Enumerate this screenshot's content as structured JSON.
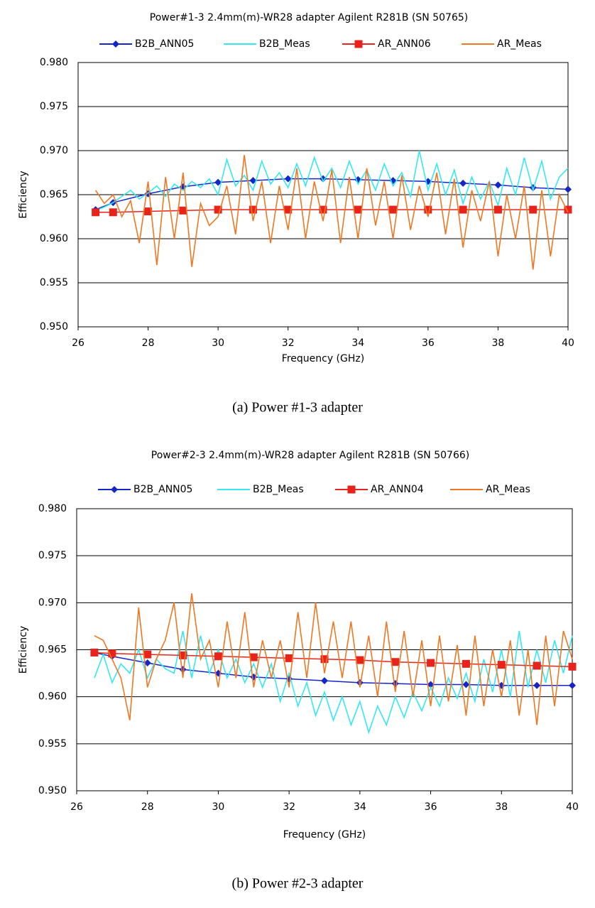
{
  "chart_data": [
    {
      "type": "line",
      "title": "Power#1-3  2.4mm(m)-WR28 adapter  Agilent R281B (SN 50765)",
      "xlabel": "Frequency (GHz)",
      "ylabel": "Efficiency",
      "caption": "(a)  Power  #1-3  adapter",
      "xlim": [
        26,
        40
      ],
      "xticks": [
        26,
        28,
        30,
        32,
        34,
        36,
        38,
        40
      ],
      "ylim": [
        0.95,
        0.98
      ],
      "yticks": [
        {
          "value": 0.95,
          "label": "0.950"
        },
        {
          "value": 0.955,
          "label": "0.955"
        },
        {
          "value": 0.96,
          "label": "0.960"
        },
        {
          "value": 0.965,
          "label": "0.965"
        },
        {
          "value": 0.97,
          "label": "0.970"
        },
        {
          "value": 0.975,
          "label": "0.975"
        },
        {
          "value": 0.98,
          "label": "0.980"
        }
      ],
      "grid": true,
      "series": [
        {
          "name": "B2B_ANN05",
          "color": "#1426c8",
          "marker": "diamond",
          "x": [
            26.5,
            27,
            28,
            29,
            30,
            31,
            32,
            33,
            34,
            35,
            36,
            37,
            38,
            39,
            40
          ],
          "values": [
            0.9633,
            0.9641,
            0.9651,
            0.9659,
            0.9664,
            0.9666,
            0.9668,
            0.9668,
            0.9667,
            0.9666,
            0.9665,
            0.9663,
            0.9661,
            0.9658,
            0.9656
          ]
        },
        {
          "name": "B2B_Meas",
          "color": "#33e8f2",
          "marker": null,
          "x": [
            26.5,
            26.75,
            27,
            27.25,
            27.5,
            27.75,
            28,
            28.25,
            28.5,
            28.75,
            29,
            29.25,
            29.5,
            29.75,
            30,
            30.25,
            30.5,
            30.75,
            31,
            31.25,
            31.5,
            31.75,
            32,
            32.25,
            32.5,
            32.75,
            33,
            33.25,
            33.5,
            33.75,
            34,
            34.25,
            34.5,
            34.75,
            35,
            35.25,
            35.5,
            35.75,
            36,
            36.25,
            36.5,
            36.75,
            37,
            37.25,
            37.5,
            37.75,
            38,
            38.25,
            38.5,
            38.75,
            39,
            39.25,
            39.5,
            39.75,
            40
          ],
          "values": [
            0.9632,
            0.9636,
            0.9641,
            0.9648,
            0.9655,
            0.9645,
            0.9652,
            0.966,
            0.9648,
            0.9662,
            0.9655,
            0.9665,
            0.9658,
            0.9668,
            0.965,
            0.969,
            0.966,
            0.9672,
            0.9655,
            0.9688,
            0.9662,
            0.9675,
            0.9658,
            0.9685,
            0.966,
            0.9692,
            0.9665,
            0.968,
            0.9658,
            0.9688,
            0.9662,
            0.9678,
            0.9655,
            0.9685,
            0.966,
            0.9675,
            0.9648,
            0.97,
            0.9655,
            0.9685,
            0.965,
            0.9678,
            0.964,
            0.967,
            0.9645,
            0.9665,
            0.9638,
            0.968,
            0.965,
            0.9692,
            0.9655,
            0.9688,
            0.9645,
            0.967,
            0.968
          ]
        },
        {
          "name": "AR_ANN06",
          "color": "#e8231b",
          "marker": "square",
          "x": [
            26.5,
            27,
            28,
            29,
            30,
            31,
            32,
            33,
            34,
            35,
            36,
            37,
            38,
            39,
            40
          ],
          "values": [
            0.963,
            0.963,
            0.9631,
            0.9632,
            0.9633,
            0.9633,
            0.9633,
            0.9633,
            0.9633,
            0.9633,
            0.9633,
            0.9633,
            0.9633,
            0.9633,
            0.9633
          ]
        },
        {
          "name": "AR_Meas",
          "color": "#ee7722",
          "marker": null,
          "x": [
            26.5,
            26.75,
            27,
            27.25,
            27.5,
            27.75,
            28,
            28.25,
            28.5,
            28.75,
            29,
            29.25,
            29.5,
            29.75,
            30,
            30.25,
            30.5,
            30.75,
            31,
            31.25,
            31.5,
            31.75,
            32,
            32.25,
            32.5,
            32.75,
            33,
            33.25,
            33.5,
            33.75,
            34,
            34.25,
            34.5,
            34.75,
            35,
            35.25,
            35.5,
            35.75,
            36,
            36.25,
            36.5,
            36.75,
            37,
            37.25,
            37.5,
            37.75,
            38,
            38.25,
            38.5,
            38.75,
            39,
            39.25,
            39.5,
            39.75,
            40
          ],
          "values": [
            0.9655,
            0.964,
            0.965,
            0.9625,
            0.9643,
            0.9595,
            0.9665,
            0.957,
            0.967,
            0.96,
            0.9675,
            0.9568,
            0.964,
            0.9615,
            0.9625,
            0.966,
            0.9605,
            0.9695,
            0.962,
            0.9665,
            0.9595,
            0.966,
            0.961,
            0.968,
            0.96,
            0.9665,
            0.962,
            0.9678,
            0.9595,
            0.967,
            0.96,
            0.968,
            0.9615,
            0.9665,
            0.96,
            0.9672,
            0.961,
            0.966,
            0.9625,
            0.9675,
            0.9605,
            0.9668,
            0.959,
            0.9655,
            0.962,
            0.9665,
            0.958,
            0.965,
            0.96,
            0.966,
            0.9565,
            0.9655,
            0.958,
            0.965,
            0.963
          ]
        }
      ]
    },
    {
      "type": "line",
      "title": "Power#2-3  2.4mm(m)-WR28 adapter  Agilent R281B (SN 50766)",
      "xlabel": "Frequency (GHz)",
      "ylabel": "Efficiency",
      "caption": "(b)  Power  #2-3  adapter",
      "xlim": [
        26,
        40
      ],
      "xticks": [
        26,
        28,
        30,
        32,
        34,
        36,
        38,
        40
      ],
      "ylim": [
        0.95,
        0.98
      ],
      "yticks": [
        {
          "value": 0.95,
          "label": "0.950"
        },
        {
          "value": 0.955,
          "label": "0.955"
        },
        {
          "value": 0.96,
          "label": "0.960"
        },
        {
          "value": 0.965,
          "label": "0.965"
        },
        {
          "value": 0.97,
          "label": "0.970"
        },
        {
          "value": 0.975,
          "label": "0.975"
        },
        {
          "value": 0.98,
          "label": "0.980"
        }
      ],
      "grid": true,
      "series": [
        {
          "name": "B2B_ANN05",
          "color": "#1426c8",
          "marker": "diamond",
          "x": [
            26.5,
            27,
            28,
            29,
            30,
            31,
            32,
            33,
            34,
            35,
            36,
            37,
            38,
            39,
            40
          ],
          "values": [
            0.9647,
            0.9643,
            0.9636,
            0.9629,
            0.9625,
            0.9621,
            0.9619,
            0.9617,
            0.9615,
            0.9614,
            0.9613,
            0.9613,
            0.9612,
            0.9612,
            0.9612
          ]
        },
        {
          "name": "B2B_Meas",
          "color": "#33e8f2",
          "marker": null,
          "x": [
            26.5,
            26.75,
            27,
            27.25,
            27.5,
            27.75,
            28,
            28.25,
            28.5,
            28.75,
            29,
            29.25,
            29.5,
            29.75,
            30,
            30.25,
            30.5,
            30.75,
            31,
            31.25,
            31.5,
            31.75,
            32,
            32.25,
            32.5,
            32.75,
            33,
            33.25,
            33.5,
            33.75,
            34,
            34.25,
            34.5,
            34.75,
            35,
            35.25,
            35.5,
            35.75,
            36,
            36.25,
            36.5,
            36.75,
            37,
            37.25,
            37.5,
            37.75,
            38,
            38.25,
            38.5,
            38.75,
            39,
            39.25,
            39.5,
            39.75,
            40
          ],
          "values": [
            0.962,
            0.9645,
            0.9615,
            0.9635,
            0.9625,
            0.965,
            0.962,
            0.964,
            0.963,
            0.9625,
            0.967,
            0.962,
            0.9665,
            0.9625,
            0.965,
            0.962,
            0.964,
            0.9615,
            0.9635,
            0.961,
            0.9635,
            0.9595,
            0.9625,
            0.959,
            0.9615,
            0.958,
            0.9605,
            0.9575,
            0.96,
            0.957,
            0.9595,
            0.9562,
            0.959,
            0.957,
            0.96,
            0.9578,
            0.9605,
            0.9585,
            0.961,
            0.959,
            0.962,
            0.9598,
            0.9625,
            0.9595,
            0.964,
            0.9605,
            0.965,
            0.96,
            0.967,
            0.961,
            0.965,
            0.9615,
            0.966,
            0.9625,
            0.9665
          ]
        },
        {
          "name": "AR_ANN04",
          "color": "#e8231b",
          "marker": "square",
          "x": [
            26.5,
            27,
            28,
            29,
            30,
            31,
            32,
            33,
            34,
            35,
            36,
            37,
            38,
            39,
            40
          ],
          "values": [
            0.9647,
            0.9646,
            0.9645,
            0.9644,
            0.9643,
            0.9642,
            0.9641,
            0.964,
            0.9639,
            0.9637,
            0.9636,
            0.9635,
            0.9634,
            0.9633,
            0.9632
          ]
        },
        {
          "name": "AR_Meas",
          "color": "#ee7722",
          "marker": null,
          "x": [
            26.5,
            26.75,
            27,
            27.25,
            27.5,
            27.75,
            28,
            28.25,
            28.5,
            28.75,
            29,
            29.25,
            29.5,
            29.75,
            30,
            30.25,
            30.5,
            30.75,
            31,
            31.25,
            31.5,
            31.75,
            32,
            32.25,
            32.5,
            32.75,
            33,
            33.25,
            33.5,
            33.75,
            34,
            34.25,
            34.5,
            34.75,
            35,
            35.25,
            35.5,
            35.75,
            36,
            36.25,
            36.5,
            36.75,
            37,
            37.25,
            37.5,
            37.75,
            38,
            38.25,
            38.5,
            38.75,
            39,
            39.25,
            39.5,
            39.75,
            40
          ],
          "values": [
            0.9665,
            0.966,
            0.964,
            0.962,
            0.9575,
            0.9695,
            0.961,
            0.964,
            0.966,
            0.97,
            0.962,
            0.971,
            0.964,
            0.966,
            0.961,
            0.968,
            0.962,
            0.969,
            0.961,
            0.966,
            0.962,
            0.966,
            0.961,
            0.969,
            0.962,
            0.97,
            0.9625,
            0.968,
            0.962,
            0.968,
            0.961,
            0.9665,
            0.96,
            0.968,
            0.9605,
            0.967,
            0.96,
            0.966,
            0.959,
            0.9665,
            0.9595,
            0.9655,
            0.958,
            0.9665,
            0.959,
            0.965,
            0.96,
            0.966,
            0.958,
            0.965,
            0.957,
            0.9665,
            0.959,
            0.967,
            0.964
          ]
        }
      ]
    }
  ]
}
